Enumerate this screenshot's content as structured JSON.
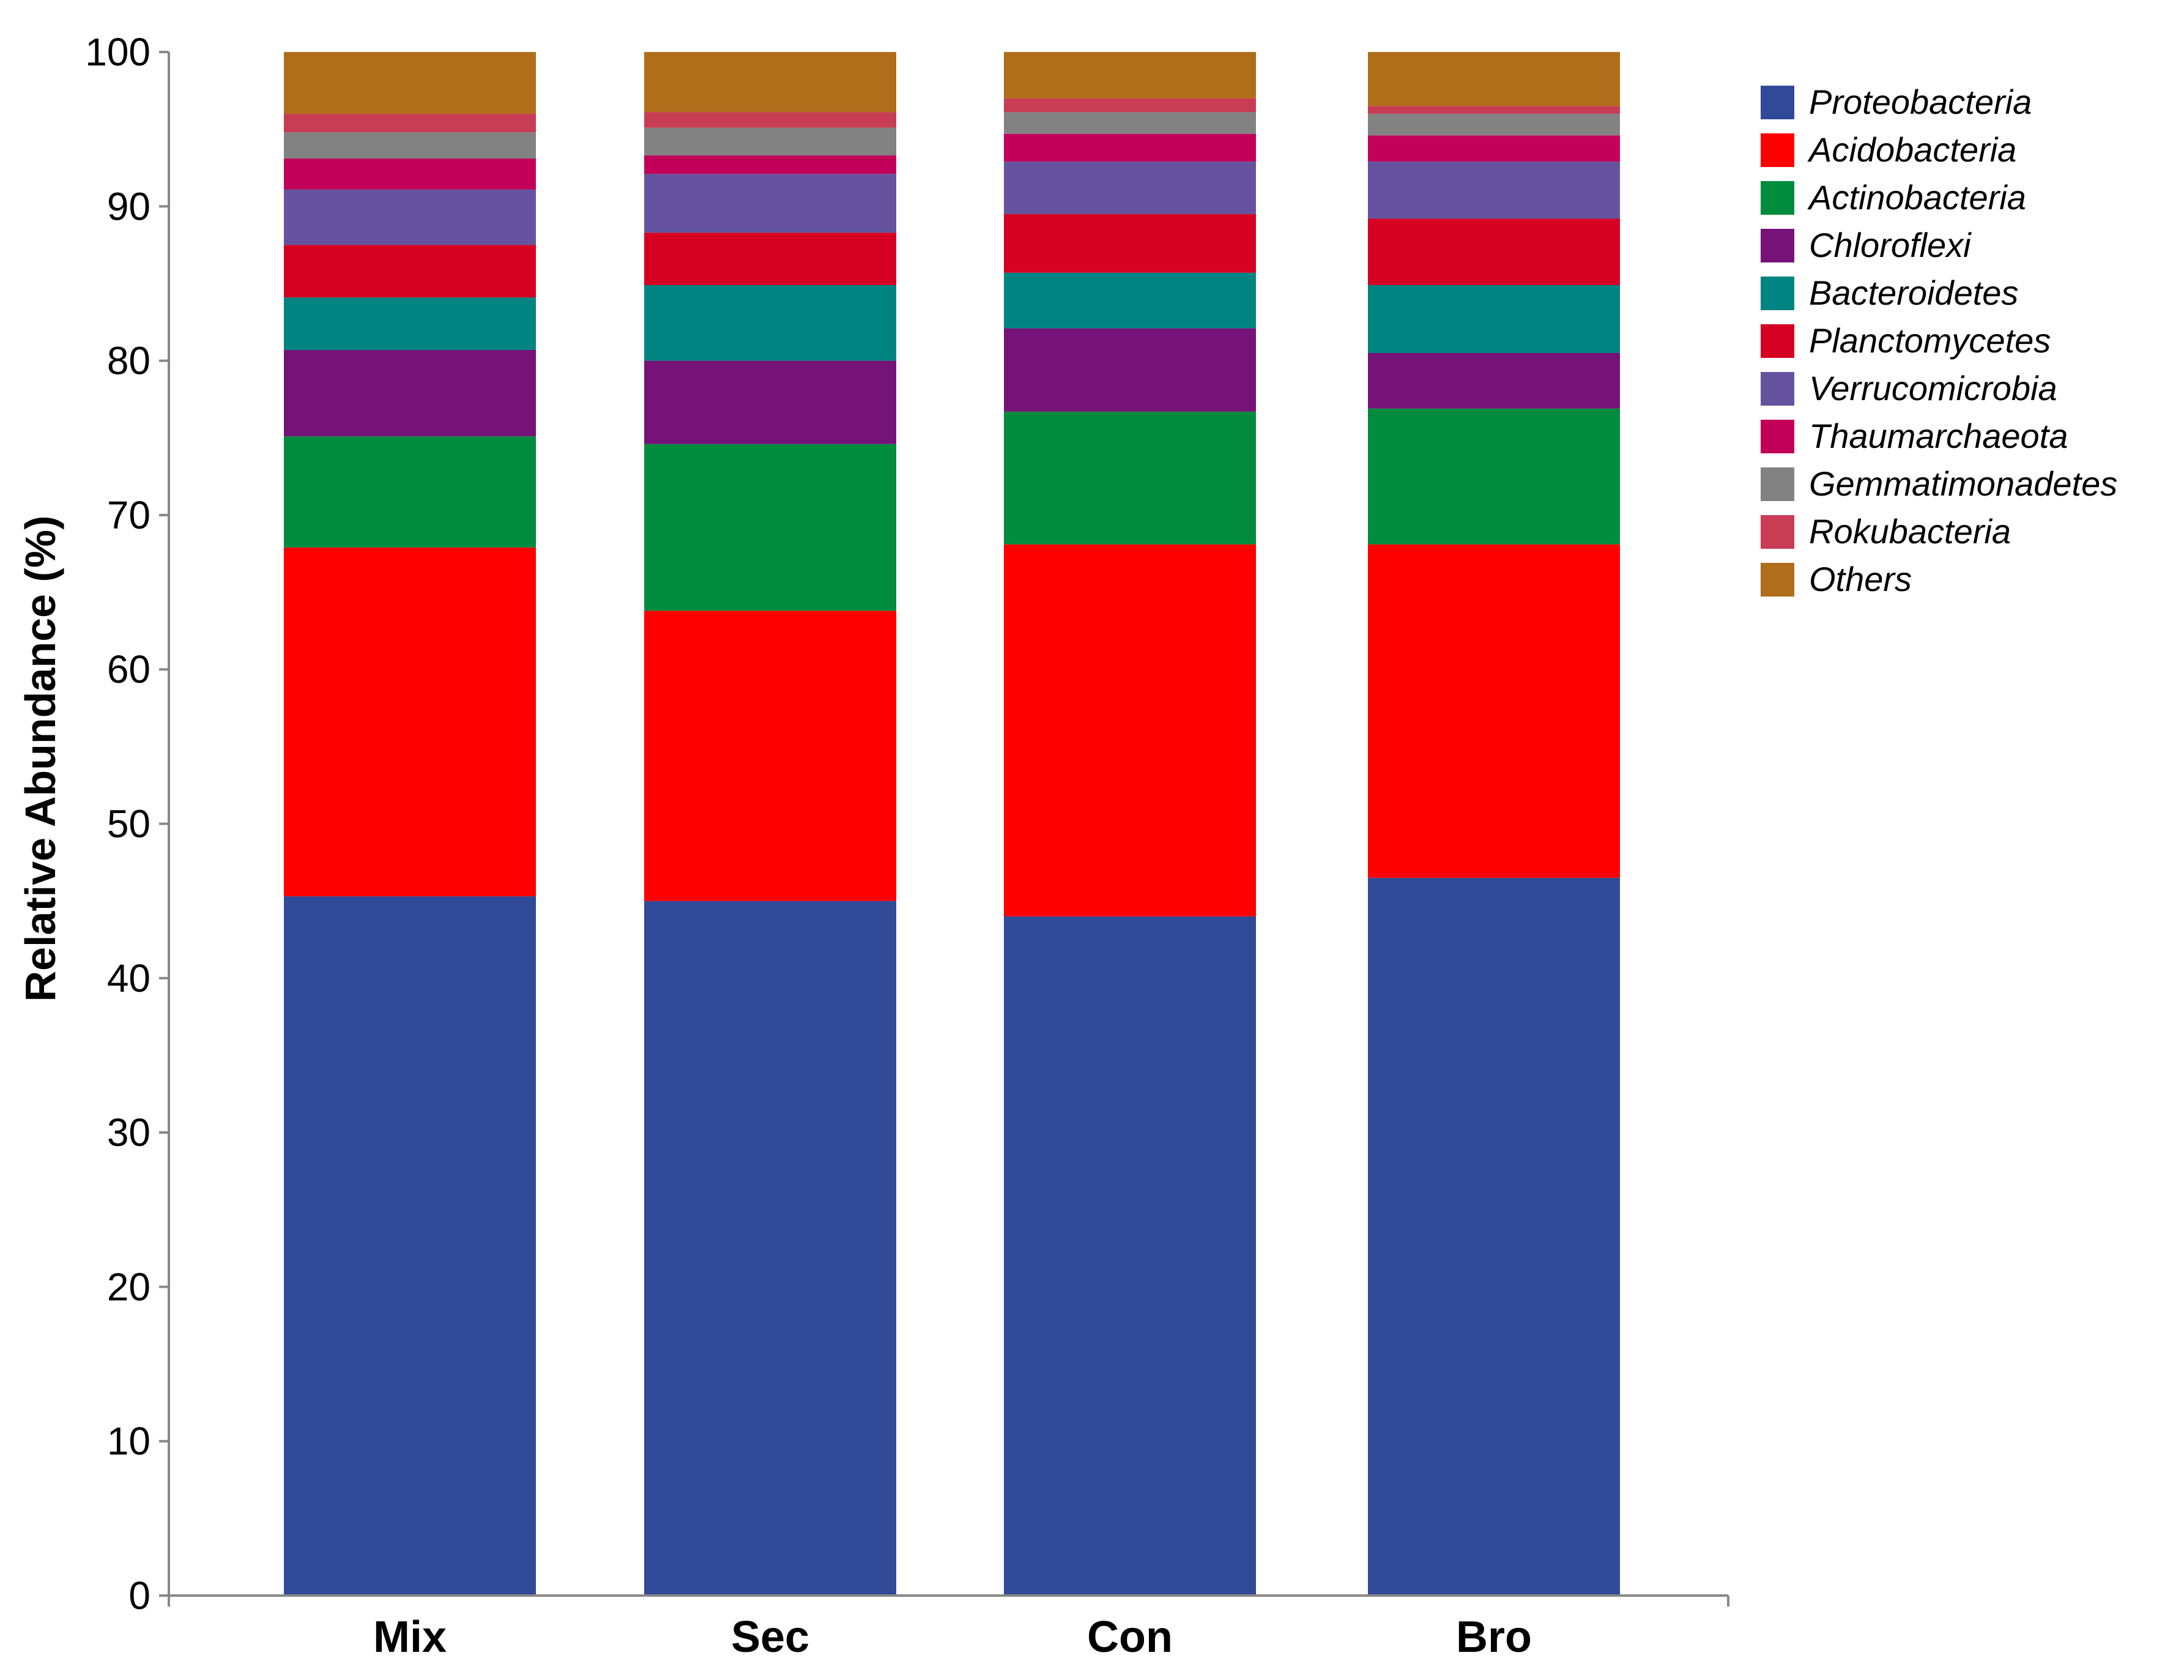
{
  "chart_data": {
    "type": "bar",
    "stacked": true,
    "title": "",
    "xlabel": "",
    "ylabel": "Relative Abundance (%)",
    "ylim": [
      0,
      100
    ],
    "yticks": [
      0,
      10,
      20,
      30,
      40,
      50,
      60,
      70,
      80,
      90,
      100
    ],
    "ytick_labels": [
      "0",
      "10",
      "20",
      "30",
      "40",
      "50",
      "60",
      "70",
      "80",
      "90",
      "100"
    ],
    "categories": [
      "Mix",
      "Sec",
      "Con",
      "Bro"
    ],
    "legend_position": "top-right",
    "series": [
      {
        "name": "Proteobacteria",
        "color": "#314a97",
        "values": [
          45.3,
          45.0,
          44.0,
          46.5
        ]
      },
      {
        "name": "Acidobacteria",
        "color": "#ff0000",
        "values": [
          22.6,
          18.8,
          24.1,
          21.6
        ]
      },
      {
        "name": "Actinobacteria",
        "color": "#008c3c",
        "values": [
          7.2,
          10.8,
          8.6,
          8.8
        ]
      },
      {
        "name": "Chloroflexi",
        "color": "#751378",
        "values": [
          5.6,
          5.4,
          5.4,
          3.6
        ]
      },
      {
        "name": "Bacteroidetes",
        "color": "#008481",
        "values": [
          3.4,
          4.9,
          3.6,
          4.4
        ]
      },
      {
        "name": "Planctomycetes",
        "color": "#d50022",
        "values": [
          3.4,
          3.4,
          3.8,
          4.3
        ]
      },
      {
        "name": "Verrucomicrobia",
        "color": "#65539f",
        "values": [
          3.6,
          3.8,
          3.4,
          3.7
        ]
      },
      {
        "name": "Thaumarchaeota",
        "color": "#c2005a",
        "values": [
          2.0,
          1.2,
          1.8,
          1.7
        ]
      },
      {
        "name": "Gemmatimonadetes",
        "color": "#828282",
        "values": [
          1.7,
          1.8,
          1.4,
          1.4
        ]
      },
      {
        "name": "Rokubacteria",
        "color": "#c83c54",
        "values": [
          1.2,
          1.0,
          0.9,
          0.5
        ]
      },
      {
        "name": "Others",
        "color": "#b06d1a",
        "values": [
          4.0,
          3.9,
          3.0,
          3.5
        ]
      }
    ]
  }
}
